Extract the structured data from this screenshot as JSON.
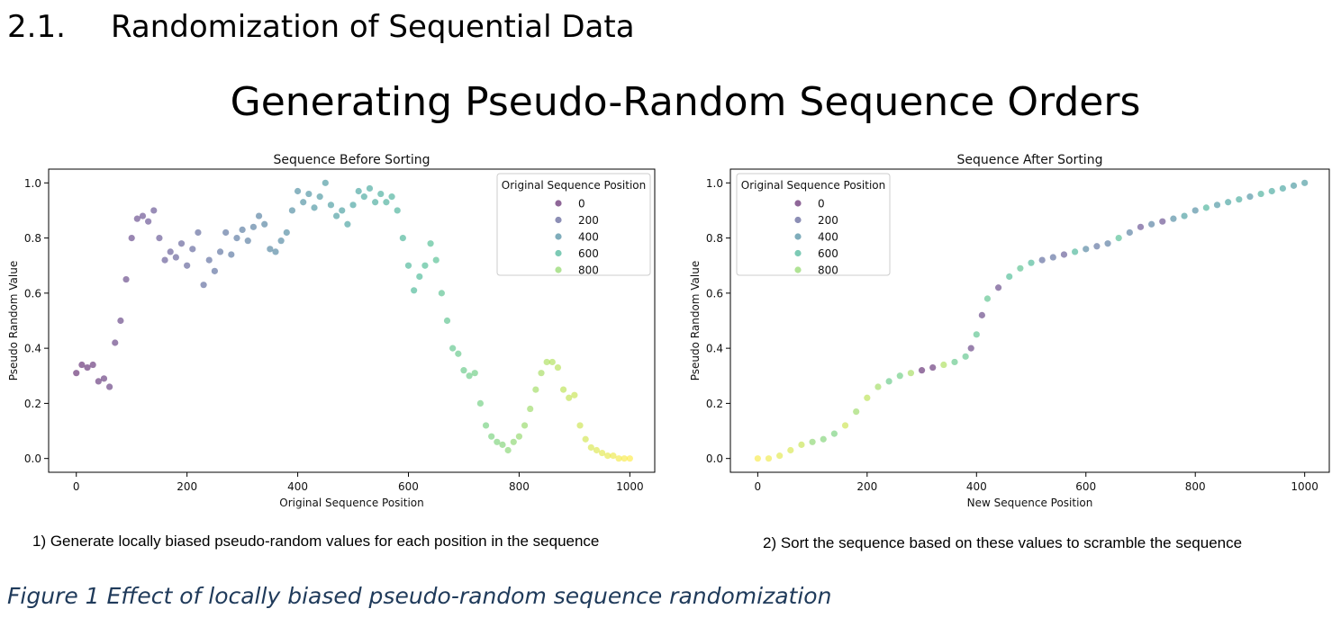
{
  "section": {
    "number": "2.1.",
    "title": "Randomization of Sequential Data"
  },
  "slide_title": "Generating Pseudo-Random Sequence Orders",
  "captions": {
    "left": "1) Generate locally biased pseudo-random values for each position in the sequence",
    "right": "2) Sort the sequence based on these values to scramble the sequence"
  },
  "figure_caption": "Figure 1 Effect of locally biased pseudo-random sequence randomization",
  "colormap": [
    "#440154",
    "#472c7a",
    "#3b518b",
    "#2c718e",
    "#21908d",
    "#27ad81",
    "#5cc863",
    "#aadc32",
    "#fde725"
  ],
  "chart_data": [
    {
      "type": "scatter",
      "title": "Sequence Before Sorting",
      "xlabel": "Original Sequence Position",
      "ylabel": "Pseudo Random Value",
      "xlim": [
        -50,
        1045
      ],
      "ylim": [
        -0.05,
        1.05
      ],
      "xticks": [
        0,
        200,
        400,
        600,
        800,
        1000
      ],
      "yticks": [
        0.0,
        0.2,
        0.4,
        0.6,
        0.8,
        1.0
      ],
      "color_by": "x",
      "marker_opacity": 0.55,
      "legend": {
        "title": "Original Sequence Position",
        "position": "top-right",
        "entries": [
          "0",
          "200",
          "400",
          "600",
          "800"
        ]
      },
      "points": [
        [
          0,
          0.31
        ],
        [
          10,
          0.34
        ],
        [
          20,
          0.33
        ],
        [
          30,
          0.34
        ],
        [
          40,
          0.28
        ],
        [
          50,
          0.29
        ],
        [
          60,
          0.26
        ],
        [
          70,
          0.42
        ],
        [
          80,
          0.5
        ],
        [
          90,
          0.65
        ],
        [
          100,
          0.8
        ],
        [
          110,
          0.87
        ],
        [
          120,
          0.88
        ],
        [
          130,
          0.86
        ],
        [
          140,
          0.9
        ],
        [
          150,
          0.8
        ],
        [
          160,
          0.72
        ],
        [
          170,
          0.75
        ],
        [
          180,
          0.73
        ],
        [
          190,
          0.78
        ],
        [
          200,
          0.7
        ],
        [
          210,
          0.76
        ],
        [
          220,
          0.82
        ],
        [
          230,
          0.63
        ],
        [
          240,
          0.72
        ],
        [
          250,
          0.68
        ],
        [
          260,
          0.75
        ],
        [
          270,
          0.82
        ],
        [
          280,
          0.74
        ],
        [
          290,
          0.8
        ],
        [
          300,
          0.83
        ],
        [
          310,
          0.79
        ],
        [
          320,
          0.84
        ],
        [
          330,
          0.88
        ],
        [
          340,
          0.85
        ],
        [
          350,
          0.76
        ],
        [
          360,
          0.75
        ],
        [
          370,
          0.79
        ],
        [
          380,
          0.82
        ],
        [
          390,
          0.9
        ],
        [
          400,
          0.97
        ],
        [
          410,
          0.93
        ],
        [
          420,
          0.96
        ],
        [
          430,
          0.91
        ],
        [
          440,
          0.95
        ],
        [
          450,
          1.0
        ],
        [
          460,
          0.92
        ],
        [
          470,
          0.88
        ],
        [
          480,
          0.9
        ],
        [
          490,
          0.85
        ],
        [
          500,
          0.92
        ],
        [
          510,
          0.97
        ],
        [
          520,
          0.95
        ],
        [
          530,
          0.98
        ],
        [
          540,
          0.93
        ],
        [
          550,
          0.96
        ],
        [
          560,
          0.93
        ],
        [
          570,
          0.95
        ],
        [
          580,
          0.9
        ],
        [
          590,
          0.8
        ],
        [
          600,
          0.7
        ],
        [
          610,
          0.61
        ],
        [
          620,
          0.66
        ],
        [
          630,
          0.7
        ],
        [
          640,
          0.78
        ],
        [
          650,
          0.72
        ],
        [
          660,
          0.6
        ],
        [
          670,
          0.5
        ],
        [
          680,
          0.4
        ],
        [
          690,
          0.38
        ],
        [
          700,
          0.32
        ],
        [
          710,
          0.3
        ],
        [
          720,
          0.31
        ],
        [
          730,
          0.2
        ],
        [
          740,
          0.12
        ],
        [
          750,
          0.08
        ],
        [
          760,
          0.06
        ],
        [
          770,
          0.05
        ],
        [
          780,
          0.03
        ],
        [
          790,
          0.06
        ],
        [
          800,
          0.08
        ],
        [
          810,
          0.12
        ],
        [
          820,
          0.18
        ],
        [
          830,
          0.25
        ],
        [
          840,
          0.31
        ],
        [
          850,
          0.35
        ],
        [
          860,
          0.35
        ],
        [
          870,
          0.33
        ],
        [
          880,
          0.25
        ],
        [
          890,
          0.22
        ],
        [
          900,
          0.23
        ],
        [
          910,
          0.12
        ],
        [
          920,
          0.07
        ],
        [
          930,
          0.04
        ],
        [
          940,
          0.03
        ],
        [
          950,
          0.02
        ],
        [
          960,
          0.01
        ],
        [
          970,
          0.01
        ],
        [
          980,
          0.0
        ],
        [
          990,
          0.0
        ],
        [
          1000,
          0.0
        ]
      ]
    },
    {
      "type": "scatter",
      "title": "Sequence After Sorting",
      "xlabel": "New Sequence Position",
      "ylabel": "Pseudo Random Value",
      "xlim": [
        -50,
        1045
      ],
      "ylim": [
        -0.05,
        1.05
      ],
      "xticks": [
        0,
        200,
        400,
        600,
        800,
        1000
      ],
      "yticks": [
        0.0,
        0.2,
        0.4,
        0.6,
        0.8,
        1.0
      ],
      "color_by": "original_position",
      "marker_opacity": 0.55,
      "legend": {
        "title": "Original Sequence Position",
        "position": "top-left",
        "entries": [
          "0",
          "200",
          "400",
          "600",
          "800"
        ]
      },
      "points": [
        [
          0,
          0.0,
          990
        ],
        [
          20,
          0.0,
          975
        ],
        [
          40,
          0.01,
          950
        ],
        [
          60,
          0.03,
          930
        ],
        [
          80,
          0.05,
          900
        ],
        [
          100,
          0.06,
          790
        ],
        [
          120,
          0.07,
          770
        ],
        [
          140,
          0.09,
          750
        ],
        [
          160,
          0.12,
          910
        ],
        [
          180,
          0.17,
          820
        ],
        [
          200,
          0.22,
          880
        ],
        [
          220,
          0.26,
          830
        ],
        [
          240,
          0.28,
          700
        ],
        [
          260,
          0.3,
          720
        ],
        [
          280,
          0.31,
          840
        ],
        [
          300,
          0.32,
          10
        ],
        [
          320,
          0.33,
          30
        ],
        [
          340,
          0.34,
          850
        ],
        [
          360,
          0.35,
          690
        ],
        [
          380,
          0.37,
          680
        ],
        [
          390,
          0.4,
          70
        ],
        [
          400,
          0.45,
          665
        ],
        [
          410,
          0.52,
          80
        ],
        [
          420,
          0.58,
          670
        ],
        [
          440,
          0.62,
          90
        ],
        [
          460,
          0.66,
          630
        ],
        [
          480,
          0.69,
          660
        ],
        [
          500,
          0.71,
          610
        ],
        [
          520,
          0.72,
          230
        ],
        [
          540,
          0.73,
          250
        ],
        [
          560,
          0.74,
          170
        ],
        [
          580,
          0.75,
          590
        ],
        [
          600,
          0.76,
          350
        ],
        [
          620,
          0.77,
          260
        ],
        [
          640,
          0.78,
          300
        ],
        [
          660,
          0.8,
          640
        ],
        [
          680,
          0.82,
          320
        ],
        [
          700,
          0.84,
          130
        ],
        [
          720,
          0.85,
          330
        ],
        [
          740,
          0.86,
          120
        ],
        [
          760,
          0.87,
          380
        ],
        [
          780,
          0.88,
          470
        ],
        [
          800,
          0.9,
          390
        ],
        [
          820,
          0.91,
          580
        ],
        [
          840,
          0.92,
          430
        ],
        [
          860,
          0.93,
          500
        ],
        [
          880,
          0.94,
          540
        ],
        [
          900,
          0.95,
          420
        ],
        [
          920,
          0.96,
          560
        ],
        [
          940,
          0.97,
          530
        ],
        [
          960,
          0.98,
          510
        ],
        [
          980,
          0.99,
          450
        ],
        [
          1000,
          1.0,
          455
        ]
      ]
    }
  ]
}
